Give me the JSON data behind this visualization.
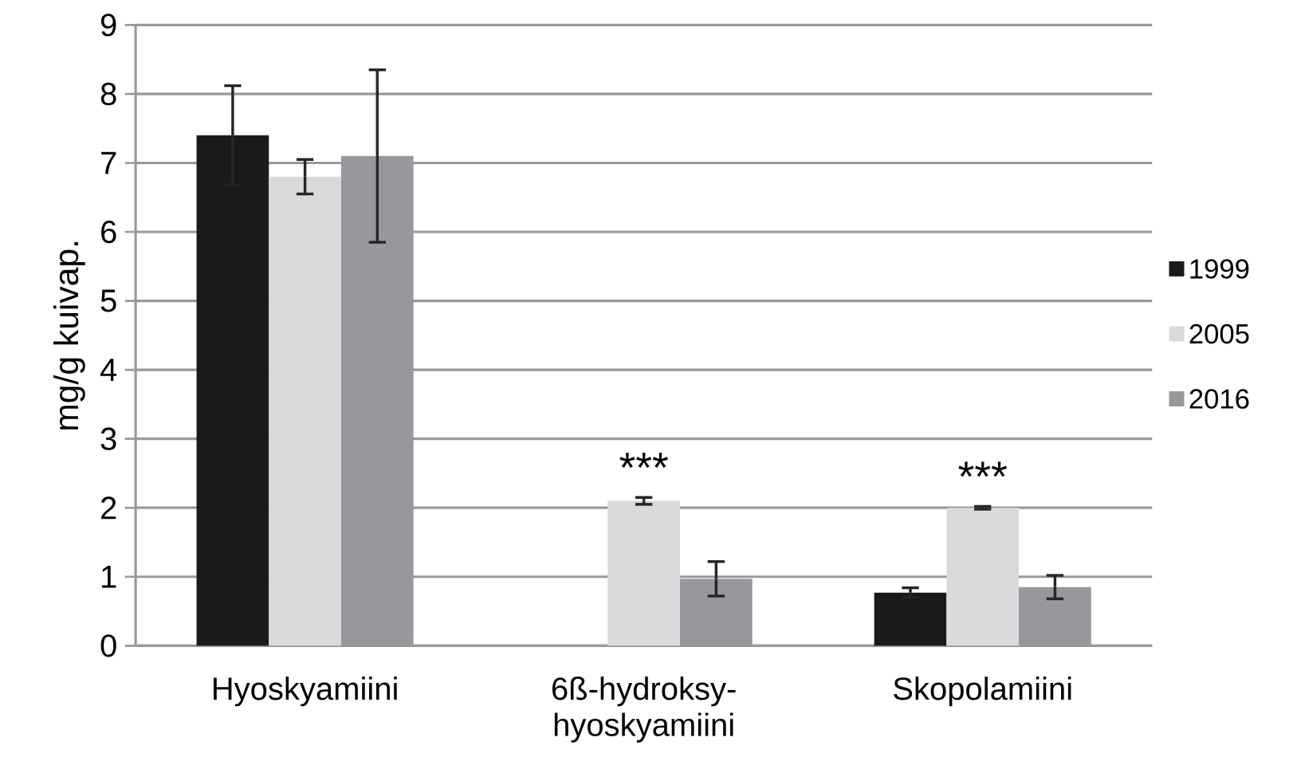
{
  "chart_data": {
    "type": "bar",
    "ylabel": "mg/g kuivap.",
    "categories": [
      "Hyoskyamiini",
      "6ß-hydroksy- hyoskyamiini",
      "Skopolamiini"
    ],
    "series": [
      {
        "name": "1999",
        "color": "#1a1a1c",
        "values": [
          7.4,
          null,
          0.77
        ],
        "errors": [
          0.72,
          null,
          0.07
        ]
      },
      {
        "name": "2005",
        "color": "#d9dadc",
        "values": [
          6.8,
          2.1,
          2.0
        ],
        "errors": [
          0.25,
          0.05,
          0.02
        ],
        "value_labels": [
          null,
          "***",
          "***"
        ]
      },
      {
        "name": "2016",
        "color": "#96989b",
        "values": [
          7.1,
          0.97,
          0.85
        ],
        "errors": [
          1.25,
          0.25,
          0.17
        ]
      }
    ],
    "ylim": [
      0,
      9
    ],
    "yticks": [
      0,
      1,
      2,
      3,
      4,
      5,
      6,
      7,
      8,
      9
    ],
    "grid": "y",
    "legend": "right"
  }
}
